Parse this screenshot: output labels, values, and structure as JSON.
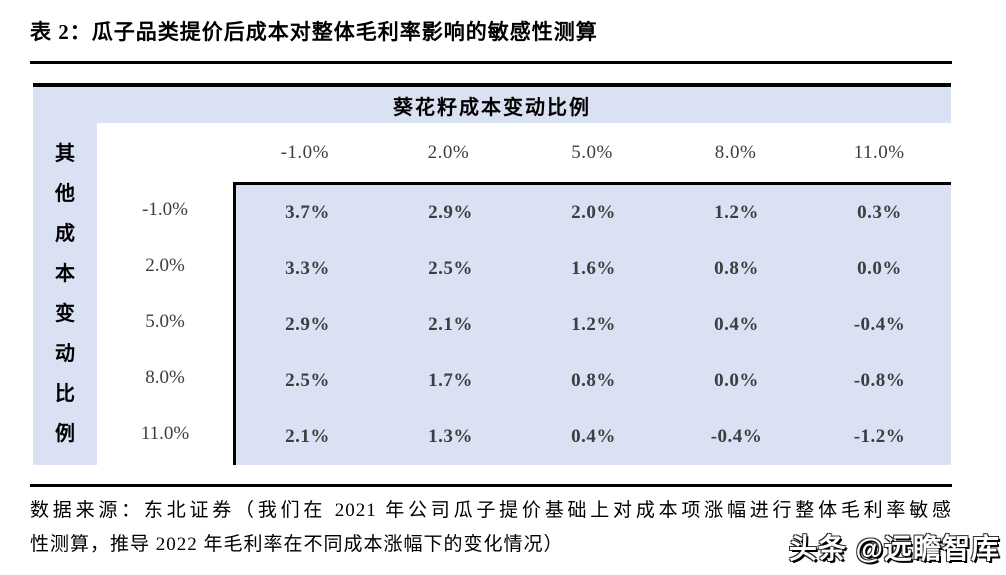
{
  "title": "表 2：瓜子品类提价后成本对整体毛利率影响的敏感性测算",
  "table": {
    "column_group_header": "葵花籽成本变动比例",
    "row_group_header": "其他成本变动比例",
    "row_group_header_chars": {
      "c0": "其",
      "c1": "他",
      "c2": "成",
      "c3": "本",
      "c4": "变",
      "c5": "动",
      "c6": "比",
      "c7": "例"
    },
    "column_headers": [
      "-1.0%",
      "2.0%",
      "5.0%",
      "8.0%",
      "11.0%"
    ],
    "rows": [
      {
        "label": "-1.0%",
        "values": [
          "3.7%",
          "2.9%",
          "2.0%",
          "1.2%",
          "0.3%"
        ]
      },
      {
        "label": "2.0%",
        "values": [
          "3.3%",
          "2.5%",
          "1.6%",
          "0.8%",
          "0.0%"
        ]
      },
      {
        "label": "5.0%",
        "values": [
          "2.9%",
          "2.1%",
          "1.2%",
          "0.4%",
          "-0.4%"
        ]
      },
      {
        "label": "8.0%",
        "values": [
          "2.5%",
          "1.7%",
          "0.8%",
          "0.0%",
          "-0.8%"
        ]
      },
      {
        "label": "11.0%",
        "values": [
          "2.1%",
          "1.3%",
          "0.4%",
          "-0.4%",
          "-1.2%"
        ]
      }
    ]
  },
  "footer": {
    "source_line1": "数据来源：东北证券（我们在 2021 年公司瓜子提价基础上对成本项涨幅进行整体毛利率敏感",
    "source_line2": "性测算，推导 2022 年毛利率在不同成本涨幅下的变化情况）"
  },
  "watermark": "头条 @远瞻智库",
  "colors": {
    "highlight_bg": "#d9e1f2",
    "rule_and_border": "#000000",
    "number_text": "#3d3d3d"
  }
}
